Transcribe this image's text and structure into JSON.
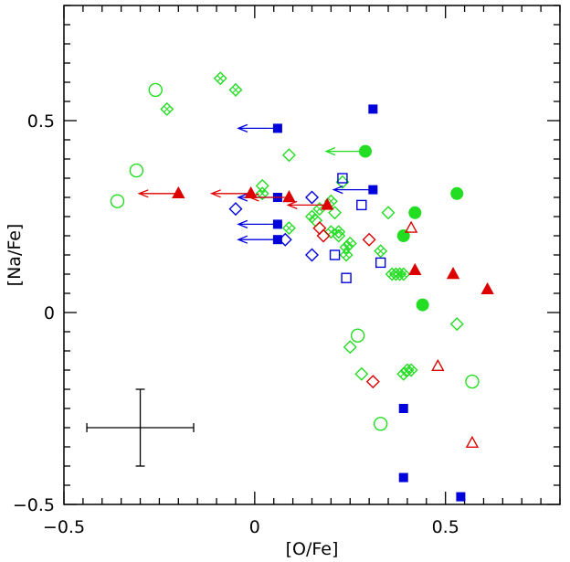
{
  "chart_data": {
    "type": "scatter",
    "title": "",
    "xlabel": "[O/Fe]",
    "ylabel": "[Na/Fe]",
    "xlim": [
      -0.5,
      0.8
    ],
    "ylim": [
      -0.5,
      0.8
    ],
    "grid": false,
    "x_ticks": [
      {
        "value": -0.5,
        "label": "−0.5"
      },
      {
        "value": 0,
        "label": "0"
      },
      {
        "value": 0.5,
        "label": "0.5"
      }
    ],
    "y_ticks": [
      {
        "value": -0.5,
        "label": "−0.5"
      },
      {
        "value": 0,
        "label": "0"
      },
      {
        "value": 0.5,
        "label": "0.5"
      }
    ],
    "colors": {
      "green": "#22dd22",
      "blue": "#0000dd",
      "red": "#dd0000",
      "black": "#000000"
    },
    "error_bar": {
      "x": -0.3,
      "y": -0.3,
      "xerr": 0.14,
      "yerr": 0.1
    },
    "series": [
      {
        "marker": "circle-open",
        "color": "green",
        "points": [
          {
            "x": -0.36,
            "y": 0.29
          },
          {
            "x": -0.31,
            "y": 0.37
          },
          {
            "x": -0.26,
            "y": 0.58
          },
          {
            "x": 0.27,
            "y": -0.06
          },
          {
            "x": 0.33,
            "y": -0.29
          },
          {
            "x": 0.57,
            "y": -0.18
          }
        ]
      },
      {
        "marker": "circle-filled",
        "color": "green",
        "points": [
          {
            "x": 0.29,
            "y": 0.42,
            "upper_limit": true
          },
          {
            "x": 0.39,
            "y": 0.2
          },
          {
            "x": 0.42,
            "y": 0.26
          },
          {
            "x": 0.44,
            "y": 0.02
          },
          {
            "x": 0.53,
            "y": 0.31
          }
        ]
      },
      {
        "marker": "diamond-open",
        "color": "green",
        "points": [
          {
            "x": 0.02,
            "y": 0.33
          },
          {
            "x": 0.09,
            "y": 0.41
          },
          {
            "x": 0.16,
            "y": 0.24
          },
          {
            "x": 0.21,
            "y": 0.26
          },
          {
            "x": 0.22,
            "y": 0.2
          },
          {
            "x": 0.23,
            "y": 0.34
          },
          {
            "x": 0.25,
            "y": -0.09
          },
          {
            "x": 0.28,
            "y": -0.16
          },
          {
            "x": 0.35,
            "y": 0.26
          },
          {
            "x": 0.37,
            "y": 0.1
          },
          {
            "x": 0.53,
            "y": -0.03
          }
        ]
      },
      {
        "marker": "diamond-cross",
        "color": "green",
        "points": [
          {
            "x": -0.23,
            "y": 0.53
          },
          {
            "x": -0.09,
            "y": 0.61
          },
          {
            "x": -0.05,
            "y": 0.58
          },
          {
            "x": 0.02,
            "y": 0.31
          },
          {
            "x": 0.09,
            "y": 0.22
          },
          {
            "x": 0.15,
            "y": 0.25
          },
          {
            "x": 0.17,
            "y": 0.27
          },
          {
            "x": 0.2,
            "y": 0.29
          },
          {
            "x": 0.2,
            "y": 0.21
          },
          {
            "x": 0.22,
            "y": 0.21
          },
          {
            "x": 0.24,
            "y": 0.15
          },
          {
            "x": 0.24,
            "y": 0.17
          },
          {
            "x": 0.25,
            "y": 0.18
          },
          {
            "x": 0.33,
            "y": 0.16
          },
          {
            "x": 0.36,
            "y": 0.1
          },
          {
            "x": 0.38,
            "y": 0.1
          },
          {
            "x": 0.39,
            "y": 0.1
          },
          {
            "x": 0.39,
            "y": -0.16
          },
          {
            "x": 0.4,
            "y": -0.15
          },
          {
            "x": 0.41,
            "y": -0.15
          }
        ]
      },
      {
        "marker": "square-filled",
        "color": "blue",
        "points": [
          {
            "x": 0.06,
            "y": 0.48,
            "upper_limit": true
          },
          {
            "x": 0.06,
            "y": 0.3,
            "upper_limit": true
          },
          {
            "x": 0.06,
            "y": 0.23,
            "upper_limit": true
          },
          {
            "x": 0.06,
            "y": 0.19,
            "upper_limit": true
          },
          {
            "x": 0.31,
            "y": 0.53
          },
          {
            "x": 0.31,
            "y": 0.32,
            "upper_limit": true
          },
          {
            "x": 0.39,
            "y": -0.25
          },
          {
            "x": 0.39,
            "y": -0.43
          },
          {
            "x": 0.54,
            "y": -0.48
          }
        ]
      },
      {
        "marker": "square-open",
        "color": "blue",
        "points": [
          {
            "x": 0.21,
            "y": 0.15
          },
          {
            "x": 0.23,
            "y": 0.35
          },
          {
            "x": 0.24,
            "y": 0.09
          },
          {
            "x": 0.28,
            "y": 0.28
          },
          {
            "x": 0.33,
            "y": 0.13
          }
        ]
      },
      {
        "marker": "diamond-open",
        "color": "blue",
        "points": [
          {
            "x": -0.05,
            "y": 0.27
          },
          {
            "x": 0.08,
            "y": 0.19
          },
          {
            "x": 0.15,
            "y": 0.3
          },
          {
            "x": 0.15,
            "y": 0.15
          }
        ]
      },
      {
        "marker": "triangle-filled",
        "color": "red",
        "points": [
          {
            "x": -0.2,
            "y": 0.31,
            "upper_limit": true
          },
          {
            "x": -0.01,
            "y": 0.31,
            "upper_limit": true
          },
          {
            "x": 0.09,
            "y": 0.3,
            "upper_limit": true
          },
          {
            "x": 0.19,
            "y": 0.28,
            "upper_limit": true
          },
          {
            "x": 0.42,
            "y": 0.11
          },
          {
            "x": 0.52,
            "y": 0.1
          },
          {
            "x": 0.61,
            "y": 0.06
          }
        ]
      },
      {
        "marker": "triangle-open",
        "color": "red",
        "points": [
          {
            "x": 0.41,
            "y": 0.22
          },
          {
            "x": 0.48,
            "y": -0.14
          },
          {
            "x": 0.57,
            "y": -0.34
          }
        ]
      },
      {
        "marker": "diamond-open",
        "color": "red",
        "points": [
          {
            "x": 0.17,
            "y": 0.22
          },
          {
            "x": 0.18,
            "y": 0.2
          },
          {
            "x": 0.3,
            "y": 0.19
          },
          {
            "x": 0.31,
            "y": -0.18
          }
        ]
      }
    ]
  }
}
